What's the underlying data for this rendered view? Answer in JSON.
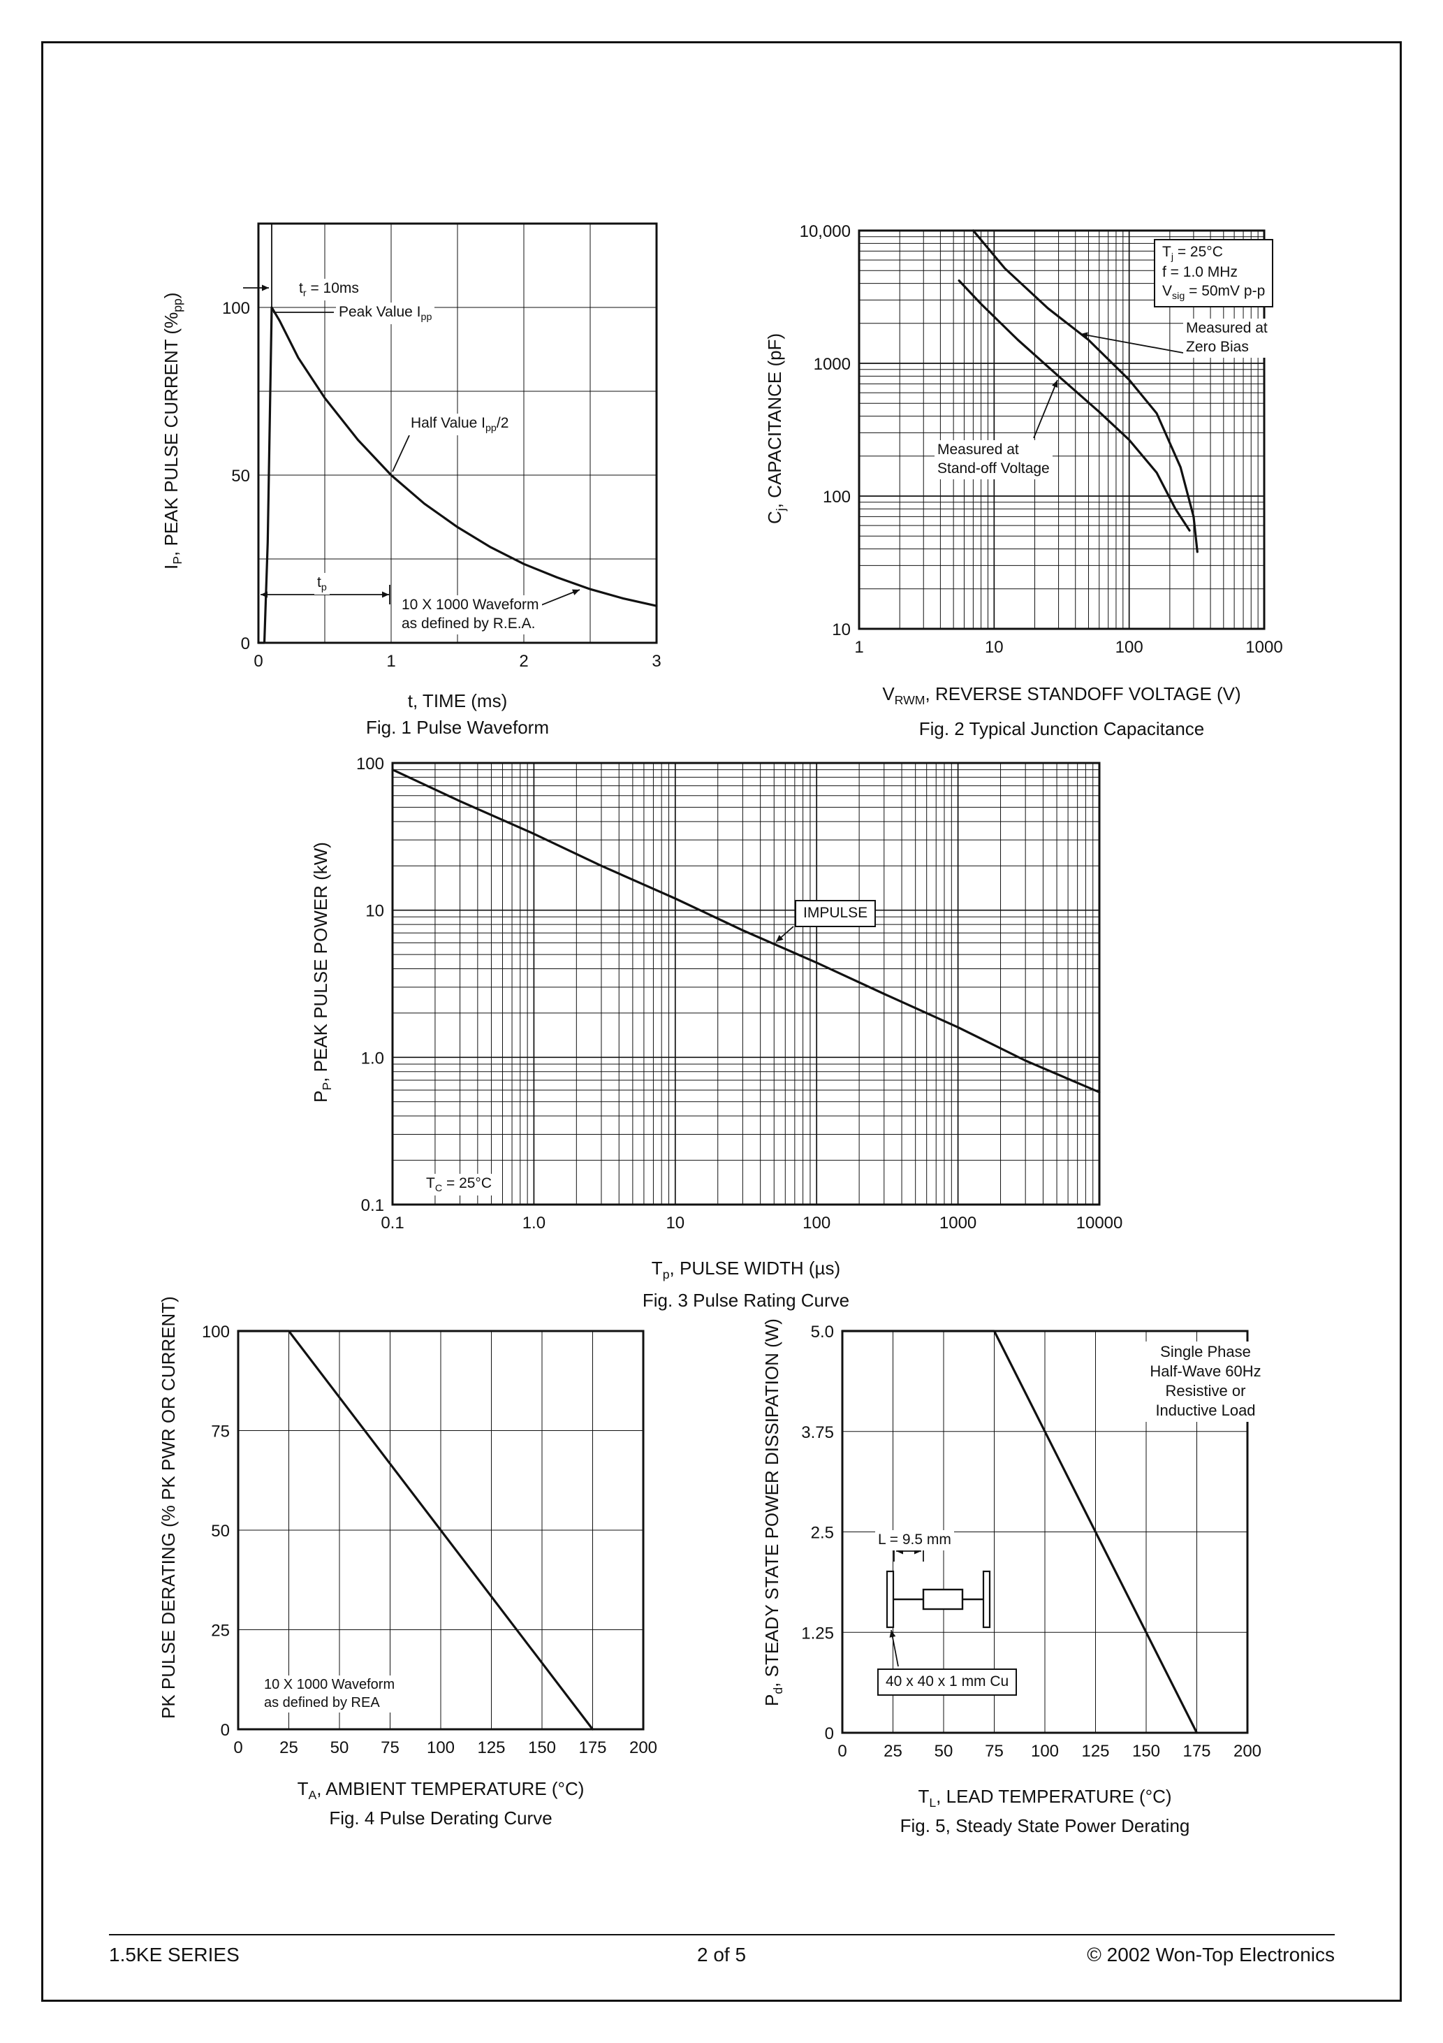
{
  "page": {
    "footer": {
      "left": "1.5KE SERIES",
      "center": "2  of  5",
      "right": "© 2002 Won-Top Electronics"
    }
  },
  "chart_data": [
    {
      "id": "fig1",
      "type": "line",
      "caption": "Fig. 1  Pulse Waveform",
      "xlabel_html": "t, TIME (ms)",
      "ylabel_html": "I<sub>P</sub>, PEAK PULSE CURRENT (%<sub>pp</sub>)",
      "x_scale": "linear",
      "y_scale": "linear",
      "xlim": [
        0,
        3
      ],
      "ylim": [
        0,
        125
      ],
      "x_gridlines": [
        0.5,
        1,
        1.5,
        2,
        2.5
      ],
      "y_gridlines": [
        25,
        50,
        75,
        100
      ],
      "x_ticks": [
        {
          "v": 0,
          "label": "0"
        },
        {
          "v": 1,
          "label": "1"
        },
        {
          "v": 2,
          "label": "2"
        },
        {
          "v": 3,
          "label": "3"
        }
      ],
      "y_ticks": [
        {
          "v": 100,
          "label": "100"
        },
        {
          "v": 50,
          "label": "50"
        },
        {
          "v": 0,
          "label": "0"
        }
      ],
      "series": [
        {
          "name": "pulse-waveform",
          "points": [
            [
              0,
              0
            ],
            [
              0.045,
              0
            ],
            [
              0.07,
              30
            ],
            [
              0.1,
              100
            ],
            [
              0.16,
              96
            ],
            [
              0.3,
              85
            ],
            [
              0.5,
              73
            ],
            [
              0.75,
              60.5
            ],
            [
              1.0,
              50
            ],
            [
              1.25,
              41.5
            ],
            [
              1.5,
              34.5
            ],
            [
              1.75,
              28.5
            ],
            [
              2.0,
              23.5
            ],
            [
              2.25,
              19.5
            ],
            [
              2.5,
              16
            ],
            [
              2.75,
              13.2
            ],
            [
              3.0,
              11
            ]
          ]
        }
      ],
      "annotations": {
        "tr": "t<sub>r</sub> = 10ms",
        "peak": "Peak Value I<sub>pp</sub>",
        "half": "Half Value I<sub>pp</sub>/2",
        "tp": "t<sub>p</sub>",
        "rea": "10 X 1000 Waveform<br>as defined by R.E.A."
      }
    },
    {
      "id": "fig2",
      "type": "line",
      "caption": "Fig. 2 Typical Junction Capacitance",
      "xlabel_html": "V<sub>RWM</sub>, REVERSE STANDOFF VOLTAGE (V)",
      "ylabel_html": "C<sub>j</sub>, CAPACITANCE (pF)",
      "x_scale": "log",
      "y_scale": "log",
      "xlim": [
        1,
        1000
      ],
      "ylim": [
        10,
        10000
      ],
      "x_ticks": [
        {
          "v": 1,
          "label": "1"
        },
        {
          "v": 10,
          "label": "10"
        },
        {
          "v": 100,
          "label": "100"
        },
        {
          "v": 1000,
          "label": "1000"
        }
      ],
      "y_ticks": [
        {
          "v": 10000,
          "label": "10,000"
        },
        {
          "v": 1000,
          "label": "1000"
        },
        {
          "v": 100,
          "label": "100"
        },
        {
          "v": 10,
          "label": "10"
        }
      ],
      "series": [
        {
          "name": "measured-at-zero-bias",
          "points": [
            [
              7,
              10000
            ],
            [
              12,
              5200
            ],
            [
              25,
              2600
            ],
            [
              50,
              1500
            ],
            [
              100,
              750
            ],
            [
              160,
              420
            ],
            [
              240,
              165
            ],
            [
              300,
              70
            ],
            [
              320,
              38
            ]
          ]
        },
        {
          "name": "measured-at-standoff-voltage",
          "points": [
            [
              5.5,
              4200
            ],
            [
              8,
              2800
            ],
            [
              15,
              1500
            ],
            [
              30,
              800
            ],
            [
              60,
              430
            ],
            [
              100,
              265
            ],
            [
              160,
              150
            ],
            [
              220,
              80
            ],
            [
              280,
              55
            ]
          ]
        }
      ],
      "annotations": {
        "conditions": "T<sub>j</sub> = 25°C<br>f = 1.0 MHz<br>V<sub>sig</sub> = 50mV p-p",
        "zero_bias": "Measured at<br>Zero Bias",
        "standoff": "Measured at<br>Stand-off Voltage"
      }
    },
    {
      "id": "fig3",
      "type": "line",
      "caption": "Fig. 3 Pulse Rating Curve",
      "xlabel_html": "T<sub>p</sub>, PULSE WIDTH (µs)",
      "ylabel_html": "P<sub>P</sub>, PEAK PULSE POWER (kW)",
      "x_scale": "log",
      "y_scale": "log",
      "xlim": [
        0.1,
        10000
      ],
      "ylim": [
        0.1,
        100
      ],
      "x_ticks": [
        {
          "v": 0.1,
          "label": "0.1"
        },
        {
          "v": 1,
          "label": "1.0"
        },
        {
          "v": 10,
          "label": "10"
        },
        {
          "v": 100,
          "label": "100"
        },
        {
          "v": 1000,
          "label": "1000"
        },
        {
          "v": 10000,
          "label": "10000"
        }
      ],
      "y_ticks": [
        {
          "v": 100,
          "label": "100"
        },
        {
          "v": 10,
          "label": "10"
        },
        {
          "v": 1,
          "label": "1.0"
        },
        {
          "v": 0.1,
          "label": "0.1"
        }
      ],
      "series": [
        {
          "name": "peak-pulse-power",
          "points": [
            [
              0.1,
              90
            ],
            [
              0.3,
              55
            ],
            [
              1,
              33
            ],
            [
              3,
              20
            ],
            [
              10,
              12
            ],
            [
              30,
              7.3
            ],
            [
              100,
              4.4
            ],
            [
              300,
              2.7
            ],
            [
              1000,
              1.6
            ],
            [
              3000,
              0.95
            ],
            [
              10000,
              0.58
            ]
          ]
        }
      ],
      "annotations": {
        "impulse": "IMPULSE",
        "tc": "T<sub>C</sub> = 25°C"
      }
    },
    {
      "id": "fig4",
      "type": "line",
      "caption": "Fig. 4  Pulse Derating Curve",
      "xlabel_html": "T<sub>A</sub>, AMBIENT TEMPERATURE (°C)",
      "ylabel_html": "PK PULSE DERATING (% PK PWR OR CURRENT)",
      "x_scale": "linear",
      "y_scale": "linear",
      "xlim": [
        0,
        200
      ],
      "ylim": [
        0,
        100
      ],
      "x_gridlines": [
        25,
        50,
        75,
        100,
        125,
        150,
        175
      ],
      "y_gridlines": [
        25,
        50,
        75
      ],
      "x_ticks": [
        {
          "v": 0,
          "label": "0"
        },
        {
          "v": 25,
          "label": "25"
        },
        {
          "v": 50,
          "label": "50"
        },
        {
          "v": 75,
          "label": "75"
        },
        {
          "v": 100,
          "label": "100"
        },
        {
          "v": 125,
          "label": "125"
        },
        {
          "v": 150,
          "label": "150"
        },
        {
          "v": 175,
          "label": "175"
        },
        {
          "v": 200,
          "label": "200"
        }
      ],
      "y_ticks": [
        {
          "v": 100,
          "label": "100"
        },
        {
          "v": 75,
          "label": "75"
        },
        {
          "v": 50,
          "label": "50"
        },
        {
          "v": 25,
          "label": "25"
        },
        {
          "v": 0,
          "label": "0"
        }
      ],
      "series": [
        {
          "name": "pulse-derating",
          "points": [
            [
              0,
              100
            ],
            [
              25,
              100
            ],
            [
              175,
              0
            ]
          ]
        }
      ],
      "annotations": {
        "rea": "10 X 1000 Waveform<br>as defined by REA"
      }
    },
    {
      "id": "fig5",
      "type": "line",
      "caption": "Fig. 5, Steady State Power Derating",
      "xlabel_html": "T<sub>L</sub>, LEAD TEMPERATURE (°C)",
      "ylabel_html": "P<sub>d</sub>, STEADY STATE POWER DISSIPATION (W)",
      "x_scale": "linear",
      "y_scale": "linear",
      "xlim": [
        0,
        200
      ],
      "ylim": [
        0,
        5
      ],
      "x_gridlines": [
        25,
        50,
        75,
        100,
        125,
        150,
        175
      ],
      "y_gridlines": [
        1.25,
        2.5,
        3.75
      ],
      "x_ticks": [
        {
          "v": 0,
          "label": "0"
        },
        {
          "v": 25,
          "label": "25"
        },
        {
          "v": 50,
          "label": "50"
        },
        {
          "v": 75,
          "label": "75"
        },
        {
          "v": 100,
          "label": "100"
        },
        {
          "v": 125,
          "label": "125"
        },
        {
          "v": 150,
          "label": "150"
        },
        {
          "v": 175,
          "label": "175"
        },
        {
          "v": 200,
          "label": "200"
        }
      ],
      "y_ticks": [
        {
          "v": 5,
          "label": "5.0"
        },
        {
          "v": 3.75,
          "label": "3.75"
        },
        {
          "v": 2.5,
          "label": "2.5"
        },
        {
          "v": 1.25,
          "label": "1.25"
        },
        {
          "v": 0,
          "label": "0"
        }
      ],
      "series": [
        {
          "name": "steady-state-power-derating",
          "points": [
            [
              0,
              5
            ],
            [
              75,
              5
            ],
            [
              175,
              0
            ]
          ]
        }
      ],
      "annotations": {
        "load": "Single Phase<br>Half-Wave 60Hz<br>Resistive or<br>Inductive Load",
        "length": "L = 9.5 mm",
        "copper": "40 x 40 x 1 mm Cu"
      }
    }
  ]
}
